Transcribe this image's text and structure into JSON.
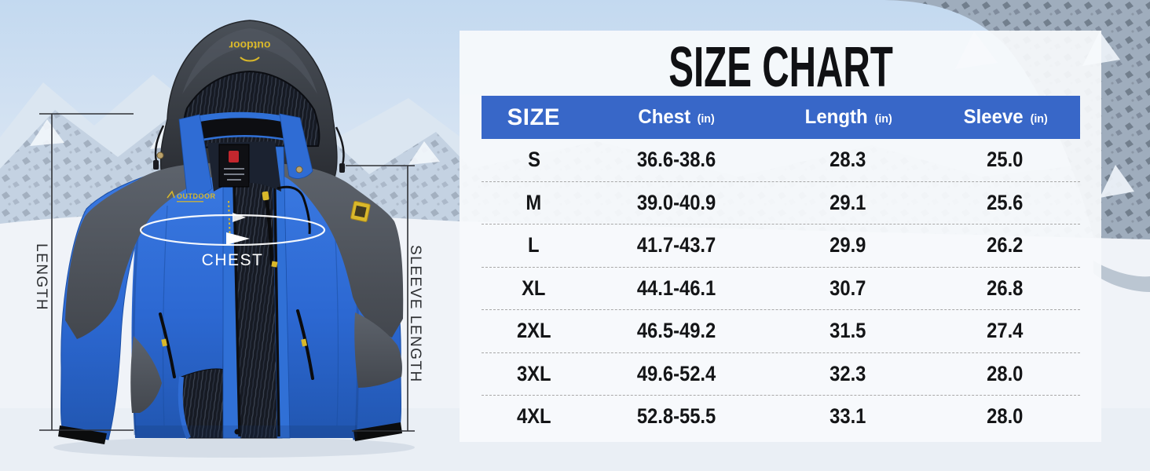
{
  "title": "SIZE CHART",
  "table": {
    "columns": [
      {
        "label": "SIZE",
        "unit": ""
      },
      {
        "label": "Chest",
        "unit": "(in)"
      },
      {
        "label": "Length",
        "unit": "(in)"
      },
      {
        "label": "Sleeve",
        "unit": "(in)"
      }
    ],
    "rows": [
      {
        "size": "S",
        "chest": "36.6-38.6",
        "length": "28.3",
        "sleeve": "25.0"
      },
      {
        "size": "M",
        "chest": "39.0-40.9",
        "length": "29.1",
        "sleeve": "25.6"
      },
      {
        "size": "L",
        "chest": "41.7-43.7",
        "length": "29.9",
        "sleeve": "26.2"
      },
      {
        "size": "XL",
        "chest": "44.1-46.1",
        "length": "30.7",
        "sleeve": "26.8"
      },
      {
        "size": "2XL",
        "chest": "46.5-49.2",
        "length": "31.5",
        "sleeve": "27.4"
      },
      {
        "size": "3XL",
        "chest": "49.6-52.4",
        "length": "32.3",
        "sleeve": "28.0"
      },
      {
        "size": "4XL",
        "chest": "52.8-55.5",
        "length": "33.1",
        "sleeve": "28.0"
      }
    ]
  },
  "annotations": {
    "length": "LENGTH",
    "sleeve": "SLEEVE LENGTH",
    "chest": "CHEST"
  },
  "jacket": {
    "hood_logo": "outdoor",
    "chest_logo": "OUTDOOR"
  },
  "colors": {
    "header_bar": "#3867c8",
    "header_text": "#ffffff",
    "body_text": "#141517",
    "panel": "#f7fafc",
    "accent_yellow": "#d9b82a",
    "jacket_blue": "#2f6cd4",
    "jacket_gray": "#52575f"
  },
  "chart_data": {
    "type": "table",
    "title": "SIZE CHART",
    "columns": [
      "SIZE",
      "Chest (in)",
      "Length (in)",
      "Sleeve (in)"
    ],
    "rows": [
      [
        "S",
        "36.6-38.6",
        "28.3",
        "25.0"
      ],
      [
        "M",
        "39.0-40.9",
        "29.1",
        "25.6"
      ],
      [
        "L",
        "41.7-43.7",
        "29.9",
        "26.2"
      ],
      [
        "XL",
        "44.1-46.1",
        "30.7",
        "26.8"
      ],
      [
        "2XL",
        "46.5-49.2",
        "31.5",
        "27.4"
      ],
      [
        "3XL",
        "49.6-52.4",
        "32.3",
        "28.0"
      ],
      [
        "4XL",
        "52.8-55.5",
        "33.1",
        "28.0"
      ]
    ]
  }
}
